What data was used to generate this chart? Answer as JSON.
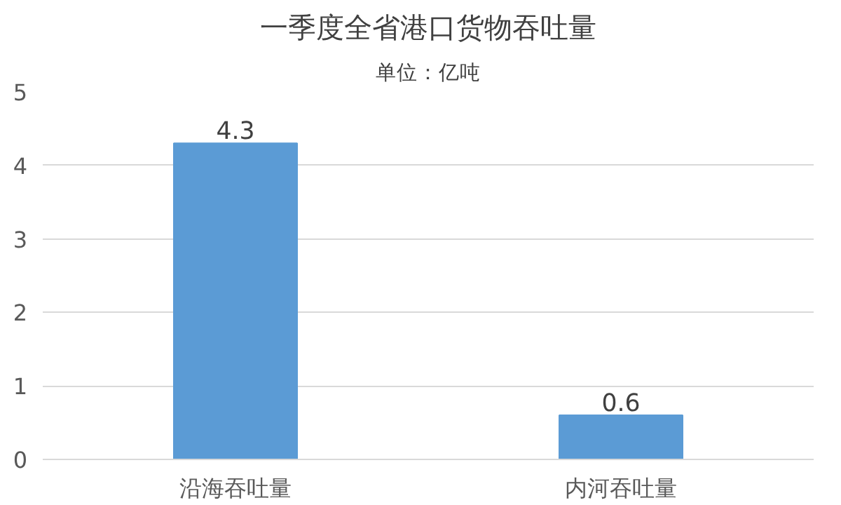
{
  "chart_data": {
    "type": "bar",
    "title": "一季度全省港口货物吞吐量",
    "subtitle": "单位：亿吨",
    "categories": [
      "沿海吞吐量",
      "内河吞吐量"
    ],
    "values": [
      4.3,
      0.6
    ],
    "color": "#5b9bd5",
    "ylim": [
      0,
      5
    ],
    "yticks": [
      0,
      1,
      2,
      3,
      4,
      5
    ],
    "grid": "y",
    "data_labels": true
  }
}
